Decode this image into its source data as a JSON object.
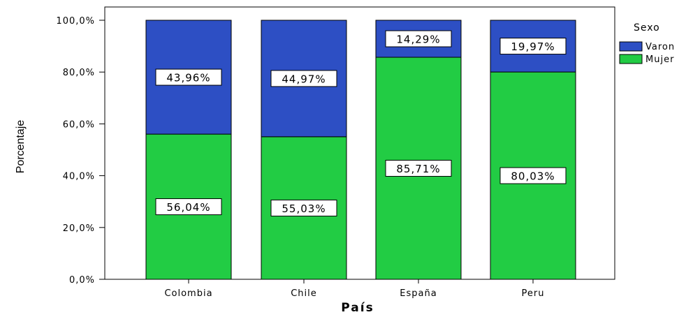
{
  "chart_data": {
    "type": "bar",
    "stacked": true,
    "xlabel": "País",
    "ylabel": "Porcentaje",
    "categories": [
      "Colombia",
      "Chile",
      "España",
      "Peru"
    ],
    "ylim": [
      0,
      100
    ],
    "yticks": [
      0,
      20,
      40,
      60,
      80,
      100
    ],
    "ytick_labels": [
      "0,0%",
      "20,0%",
      "40,0%",
      "60,0%",
      "80,0%",
      "100,0%"
    ],
    "series": [
      {
        "name": "Mujer",
        "color": "#22cc44",
        "values": [
          56.04,
          55.03,
          85.71,
          80.03
        ],
        "labels": [
          "56,04%",
          "55,03%",
          "85,71%",
          "80,03%"
        ]
      },
      {
        "name": "Varon",
        "color": "#2d4fc4",
        "values": [
          43.96,
          44.97,
          14.29,
          19.97
        ],
        "labels": [
          "43,96%",
          "44,97%",
          "14,29%",
          "19,97%"
        ]
      }
    ],
    "legend": {
      "title": "Sexo",
      "placement": "right",
      "entries": [
        "Varon",
        "Mujer"
      ]
    },
    "grid": false
  }
}
